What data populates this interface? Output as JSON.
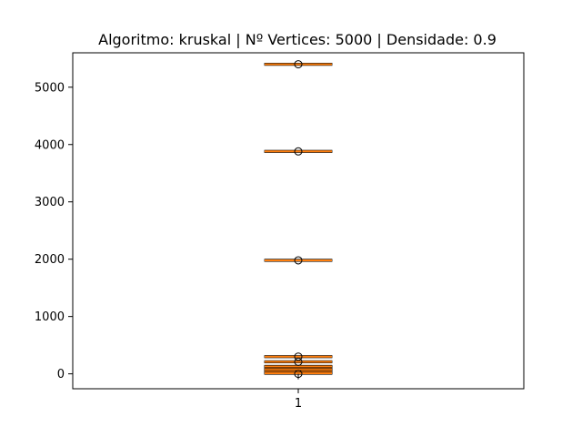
{
  "chart_data": {
    "type": "box",
    "title": "Algoritmo: kruskal | Nº Vertices: 5000 | Densidade: 0.9",
    "xlabel": "",
    "ylabel": "",
    "categories": [
      "1"
    ],
    "ylim": [
      -260,
      5600
    ],
    "yticks": [
      0,
      1000,
      2000,
      3000,
      4000,
      5000
    ],
    "ytick_labels": [
      "0",
      "1000",
      "2000",
      "3000",
      "4000",
      "5000"
    ],
    "grid": false,
    "colors": {
      "median": "#ff7f0e",
      "box": "#000000",
      "flier": "#000000",
      "frame": "#000000"
    },
    "repeated_box_levels": [
      5400,
      3880,
      1980,
      300,
      210,
      130,
      80,
      40,
      10
    ],
    "dense_box_range": [
      0,
      140
    ],
    "fliers": [
      5400,
      3880,
      1980,
      300,
      210,
      0
    ]
  }
}
